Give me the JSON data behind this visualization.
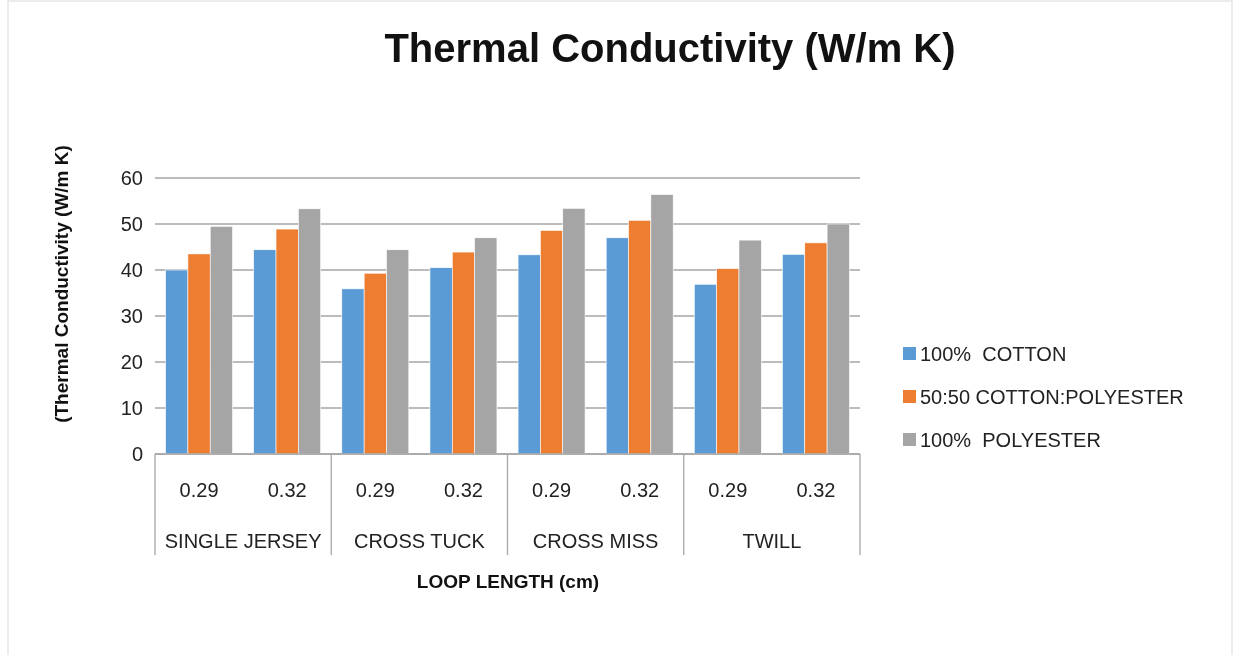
{
  "chart_data": {
    "type": "bar",
    "title": "Thermal Conductivity (W/m K)",
    "xlabel": "LOOP LENGTH (cm)",
    "ylabel": "(Thermal Conductivity (W/m K)",
    "categories": [
      "0.29",
      "0.32",
      "0.29",
      "0.32",
      "0.29",
      "0.32",
      "0.29",
      "0.32"
    ],
    "annotations": [
      "SINGLE JERSEY",
      "CROSS TUCK",
      "CROSS MISS",
      "TWILL"
    ],
    "series": [
      {
        "name": "100%  COTTON",
        "color": "#5b9bd5",
        "values": [
          40,
          44.4,
          35.9,
          40.5,
          43.3,
          47,
          36.9,
          43.4
        ]
      },
      {
        "name": "50:50 COTTON:POLYESTER",
        "color": "#ed7d31",
        "values": [
          43.5,
          48.9,
          39.3,
          43.9,
          48.6,
          50.8,
          40.3,
          45.9
        ]
      },
      {
        "name": "100%  POLYESTER",
        "color": "#a5a5a5",
        "values": [
          49.5,
          53.3,
          44.4,
          47,
          53.4,
          56.4,
          46.5,
          50
        ]
      }
    ],
    "ylim": [
      0,
      60
    ],
    "yticks": [
      0,
      10,
      20,
      30,
      40,
      50,
      60
    ],
    "grid": "y",
    "legend": "right"
  }
}
